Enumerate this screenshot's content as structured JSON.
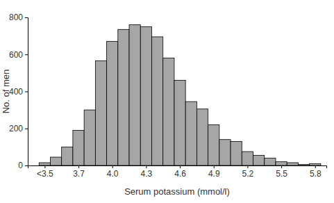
{
  "chart_data": {
    "type": "histogram",
    "x_label": "Serum potassium (mmol/l)",
    "y_label": "No. of men",
    "bins": [
      3.35,
      3.45,
      3.55,
      3.65,
      3.75,
      3.85,
      3.95,
      4.05,
      4.15,
      4.25,
      4.35,
      4.45,
      4.55,
      4.65,
      4.75,
      4.85,
      4.95,
      5.05,
      5.15,
      5.25,
      5.35,
      5.45,
      5.55,
      5.65,
      5.75,
      5.85
    ],
    "values": [
      15,
      45,
      100,
      190,
      300,
      565,
      670,
      735,
      760,
      750,
      695,
      580,
      460,
      345,
      305,
      220,
      140,
      130,
      75,
      55,
      40,
      20,
      15,
      5,
      10
    ],
    "color": "#a6a6a6",
    "xlim": [
      3.25,
      5.9
    ],
    "xticks": [
      {
        "value": 3.4,
        "label": "<3.5"
      },
      3.7,
      {
        "value": 4,
        "label": "4.0"
      },
      4.3,
      4.6,
      4.9,
      5.2,
      5.5,
      5.8
    ],
    "ylim": [
      0,
      800
    ],
    "yticks": [
      0,
      200,
      400,
      600,
      800
    ],
    "grid": false
  }
}
